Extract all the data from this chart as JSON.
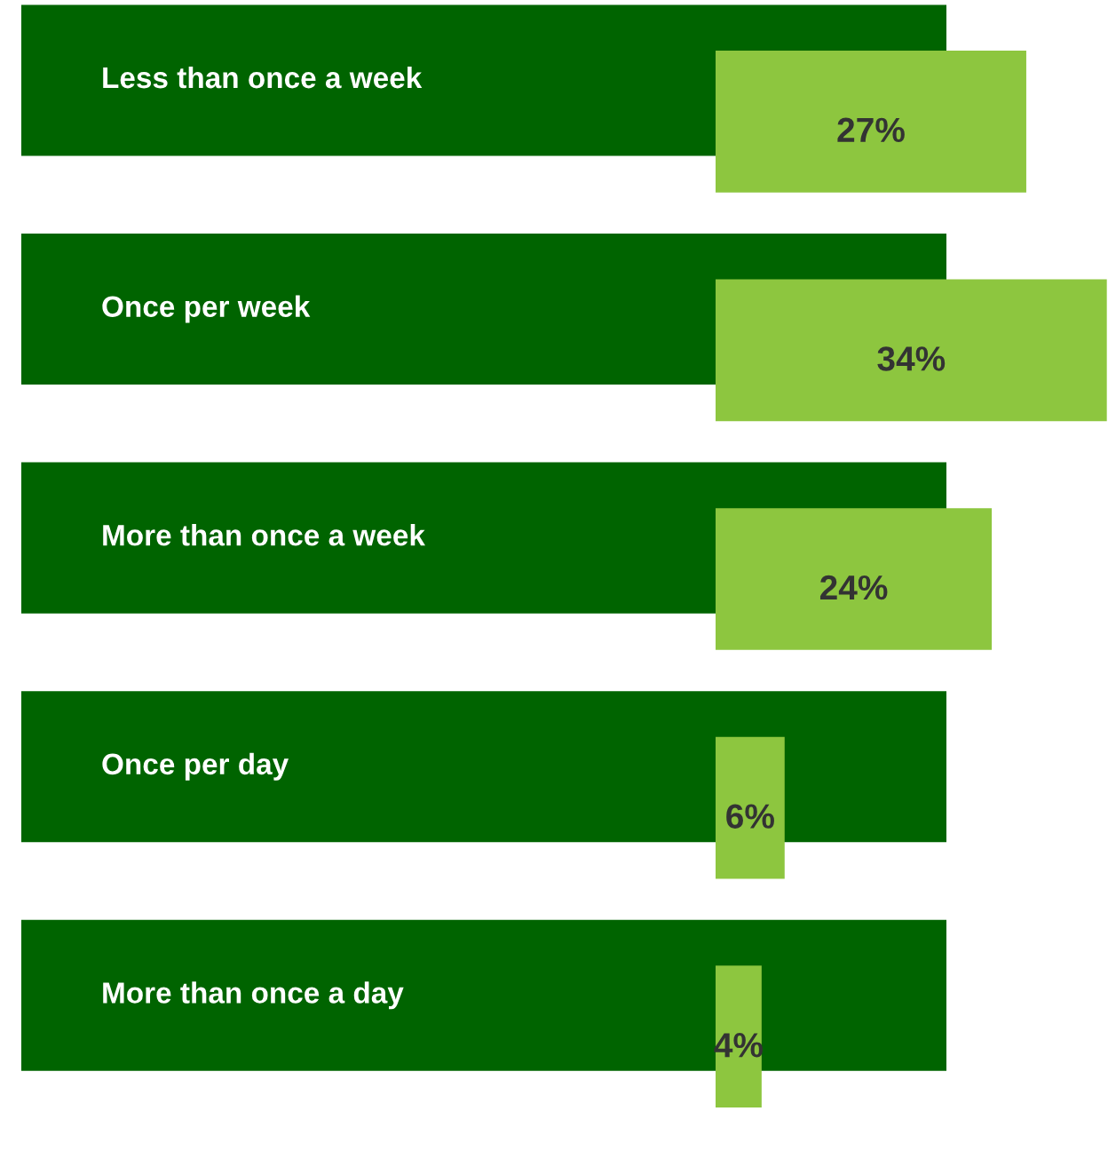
{
  "chart_data": {
    "type": "bar",
    "orientation": "horizontal",
    "categories": [
      "Less than once a week",
      "Once per week",
      "More than once a week",
      "Once per day",
      "More than once a day"
    ],
    "values": [
      27,
      34,
      24,
      6,
      4
    ],
    "value_labels": [
      "27%",
      "34%",
      "24%",
      "6%",
      "4%"
    ],
    "color": "#8dc63f"
  }
}
